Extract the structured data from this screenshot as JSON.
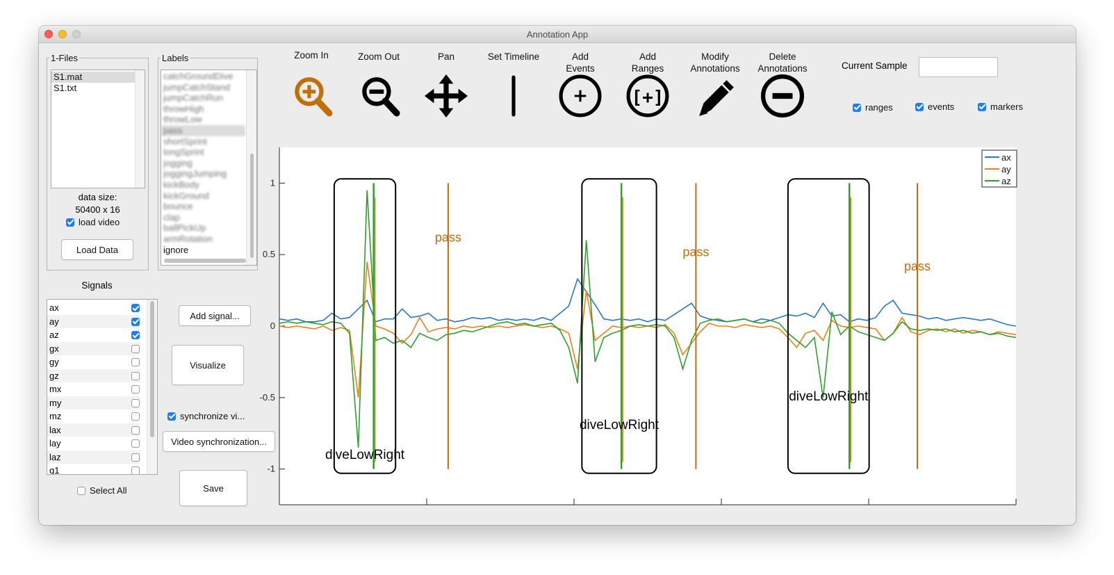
{
  "window": {
    "title": "Annotation App"
  },
  "files_panel": {
    "title": "1-Files",
    "files": [
      "S1.mat",
      "S1.txt"
    ],
    "data_size_label": "data size:",
    "data_size_value": "50400 x 16",
    "load_video_label": "load video",
    "load_video_checked": true,
    "load_data_button": "Load Data"
  },
  "labels_panel": {
    "title": "Labels",
    "items": [
      "catchGroundDive",
      "jumpCatchStand",
      "jumpCatchRun",
      "throwHigh",
      "throwLow",
      "pass",
      "shortSprint",
      "longSprint",
      "jogging",
      "joggingJumping",
      "kickBody",
      "kickGround",
      "bounce",
      "clap",
      "ballPickUp",
      "armRotation",
      "ignore"
    ],
    "selected_index": 5
  },
  "signals_panel": {
    "title": "Signals",
    "items": [
      {
        "name": "ax",
        "checked": true
      },
      {
        "name": "ay",
        "checked": true
      },
      {
        "name": "az",
        "checked": true
      },
      {
        "name": "gx",
        "checked": false
      },
      {
        "name": "gy",
        "checked": false
      },
      {
        "name": "gz",
        "checked": false
      },
      {
        "name": "mx",
        "checked": false
      },
      {
        "name": "my",
        "checked": false
      },
      {
        "name": "mz",
        "checked": false
      },
      {
        "name": "lax",
        "checked": false
      },
      {
        "name": "lay",
        "checked": false
      },
      {
        "name": "laz",
        "checked": false
      },
      {
        "name": "q1",
        "checked": false
      }
    ],
    "select_all_label": "Select All"
  },
  "buttons": {
    "add_signal": "Add signal...",
    "visualize": "Visualize",
    "synchronize_label": "synchronize vi...",
    "video_sync": "Video synchronization...",
    "save": "Save"
  },
  "toolbar": [
    {
      "id": "zoom-in",
      "label": "Zoom In",
      "icon": "zoom-in-icon"
    },
    {
      "id": "zoom-out",
      "label": "Zoom Out",
      "icon": "zoom-out-icon"
    },
    {
      "id": "pan",
      "label": "Pan",
      "icon": "pan-arrows-icon"
    },
    {
      "id": "set-timeline",
      "label": "Set Timeline",
      "icon": "timeline-bar-icon"
    },
    {
      "id": "add-events",
      "label": "Add\nEvents",
      "icon": "add-circle-icon"
    },
    {
      "id": "add-ranges",
      "label": "Add\nRanges",
      "icon": "add-range-icon"
    },
    {
      "id": "modify",
      "label": "Modify\nAnnotations",
      "icon": "pencil-icon"
    },
    {
      "id": "delete",
      "label": "Delete\nAnnotations",
      "icon": "minus-circle-icon"
    }
  ],
  "current_sample": {
    "label": "Current Sample",
    "value": ""
  },
  "visibility": {
    "ranges": {
      "label": "ranges",
      "checked": true
    },
    "events": {
      "label": "events",
      "checked": true
    },
    "markers": {
      "label": "markers",
      "checked": true
    }
  },
  "colors": {
    "accent": "#c0700a",
    "ax": "#2a78bd",
    "ay": "#f07f16",
    "az": "#2ea02c",
    "event": "#c86a0a"
  },
  "chart_data": {
    "type": "line",
    "title": "",
    "xlabel": "",
    "ylabel": "",
    "ylim": [
      -1.25,
      1.25
    ],
    "yticks": [
      -1,
      -0.5,
      0,
      0.5,
      1
    ],
    "ytick_labels": [
      "-1",
      "-0.5",
      "0",
      "0.5",
      "1"
    ],
    "legend": {
      "placement": "top-right",
      "entries": [
        "ax",
        "ay",
        "az"
      ]
    },
    "x": [
      0,
      0.12,
      0.24,
      0.36,
      0.48,
      0.6,
      0.72,
      0.84,
      0.96,
      1.08,
      1.2,
      1.32,
      1.44,
      1.56,
      1.68,
      1.8,
      1.92,
      2.04,
      2.16,
      2.28,
      2.4,
      2.52,
      2.64,
      2.76,
      2.88,
      3.0,
      3.12,
      3.24,
      3.36,
      3.48,
      3.6,
      3.72,
      3.84,
      3.96,
      4.08,
      4.2,
      4.32,
      4.44,
      4.56,
      4.68,
      4.8,
      4.92,
      5.04,
      5.16,
      5.28,
      5.4,
      5.52,
      5.64,
      5.76,
      5.88,
      6.0,
      6.12,
      6.24,
      6.36,
      6.48,
      6.6,
      6.72,
      6.84,
      6.96,
      7.08,
      7.2,
      7.32,
      7.44,
      7.56,
      7.68,
      7.8,
      7.92,
      8.04,
      8.16,
      8.28,
      8.4,
      8.52,
      8.64,
      8.76,
      8.88,
      9.0,
      9.12,
      9.24,
      9.36,
      9.48,
      9.6,
      9.72,
      9.84,
      9.96,
      10.08
    ],
    "series": [
      {
        "name": "ax",
        "values": [
          0.05,
          0.04,
          0.05,
          0.03,
          0.03,
          0.04,
          0.09,
          0.05,
          0.06,
          0.12,
          0.18,
          0.03,
          0.05,
          0.05,
          0.12,
          0.06,
          0.07,
          0.09,
          0.04,
          0.05,
          0.03,
          0.04,
          0.06,
          0.05,
          0.06,
          0.04,
          0.05,
          0.04,
          0.05,
          0.04,
          0.06,
          0.04,
          0.09,
          0.14,
          0.33,
          0.24,
          0.15,
          0.05,
          0.04,
          0.05,
          0.04,
          0.05,
          0.03,
          0.05,
          0.04,
          0.08,
          0.12,
          0.16,
          0.07,
          0.05,
          0.04,
          0.03,
          0.04,
          0.05,
          0.03,
          0.05,
          0.04,
          0.06,
          0.08,
          0.07,
          0.09,
          0.06,
          0.16,
          0.07,
          0.08,
          0.03,
          0.05,
          0.04,
          0.06,
          0.14,
          0.18,
          0.09,
          0.08,
          0.07,
          0.05,
          0.06,
          0.04,
          0.05,
          0.06,
          0.05,
          0.04,
          0.05,
          0.03,
          0.01,
          0.0
        ]
      },
      {
        "name": "ay",
        "values": [
          0.0,
          -0.01,
          0.0,
          -0.01,
          -0.02,
          0.0,
          -0.03,
          -0.01,
          -0.03,
          -0.5,
          0.45,
          0.0,
          -0.02,
          -0.05,
          -0.12,
          -0.06,
          0.06,
          -0.04,
          -0.02,
          -0.01,
          -0.02,
          0.0,
          -0.01,
          0.0,
          -0.01,
          0.0,
          -0.01,
          0.0,
          0.01,
          0.0,
          -0.01,
          0.0,
          -0.02,
          -0.05,
          -0.3,
          0.25,
          -0.1,
          -0.05,
          0.0,
          -0.01,
          0.0,
          -0.01,
          0.0,
          -0.01,
          0.01,
          -0.05,
          -0.2,
          -0.12,
          -0.04,
          0.02,
          0.0,
          0.0,
          -0.01,
          0.01,
          0.0,
          -0.01,
          0.0,
          -0.02,
          -0.08,
          -0.15,
          -0.05,
          -0.03,
          -0.1,
          0.04,
          0.0,
          -0.01,
          0.0,
          -0.01,
          -0.02,
          -0.1,
          -0.05,
          0.06,
          -0.04,
          -0.06,
          -0.03,
          -0.02,
          -0.04,
          -0.02,
          -0.05,
          -0.03,
          -0.04,
          -0.06,
          -0.04,
          -0.05,
          -0.06
        ]
      },
      {
        "name": "az",
        "values": [
          0.02,
          0.03,
          0.02,
          0.03,
          0.02,
          0.01,
          0.03,
          0.02,
          -0.05,
          -0.85,
          0.95,
          -0.1,
          -0.08,
          -0.12,
          -0.1,
          -0.15,
          -0.05,
          -0.08,
          -0.1,
          -0.06,
          -0.05,
          -0.03,
          -0.04,
          -0.02,
          0.0,
          0.02,
          0.03,
          0.01,
          0.02,
          0.0,
          0.01,
          0.02,
          -0.03,
          -0.15,
          -0.4,
          0.6,
          -0.25,
          -0.08,
          -0.05,
          -0.03,
          0.0,
          0.01,
          0.0,
          0.01,
          0.0,
          -0.08,
          -0.3,
          -0.1,
          0.02,
          0.04,
          0.05,
          0.03,
          0.04,
          0.05,
          0.03,
          0.02,
          0.04,
          0.02,
          -0.05,
          -0.1,
          -0.15,
          -0.08,
          -0.5,
          0.1,
          -0.06,
          0.0,
          -0.04,
          -0.06,
          -0.08,
          -0.1,
          -0.05,
          0.03,
          -0.02,
          -0.03,
          -0.02,
          -0.03,
          -0.02,
          -0.04,
          -0.03,
          -0.05,
          -0.04,
          -0.06,
          -0.05,
          -0.07,
          -0.08
        ]
      }
    ],
    "spikes": [
      {
        "x": 1.29,
        "ymin": -1,
        "ymax": 1
      },
      {
        "x": 4.68,
        "ymin": -1,
        "ymax": 1
      },
      {
        "x": 7.8,
        "ymin": -1,
        "ymax": 1
      }
    ],
    "ranges": [
      {
        "label": "diveLowRight",
        "x0": 0.75,
        "x1": 1.59,
        "label_y": -0.93
      },
      {
        "label": "diveLowRight",
        "x0": 4.14,
        "x1": 5.16,
        "label_y": -0.72
      },
      {
        "label": "diveLowRight",
        "x0": 6.96,
        "x1": 8.07,
        "label_y": -0.52
      }
    ],
    "events": [
      {
        "label": "pass",
        "x": 2.31,
        "label_y": 0.59
      },
      {
        "label": "pass",
        "x": 5.7,
        "label_y": 0.49
      },
      {
        "label": "pass",
        "x": 8.73,
        "label_y": 0.39
      }
    ],
    "xlim": [
      0,
      10.08
    ]
  }
}
